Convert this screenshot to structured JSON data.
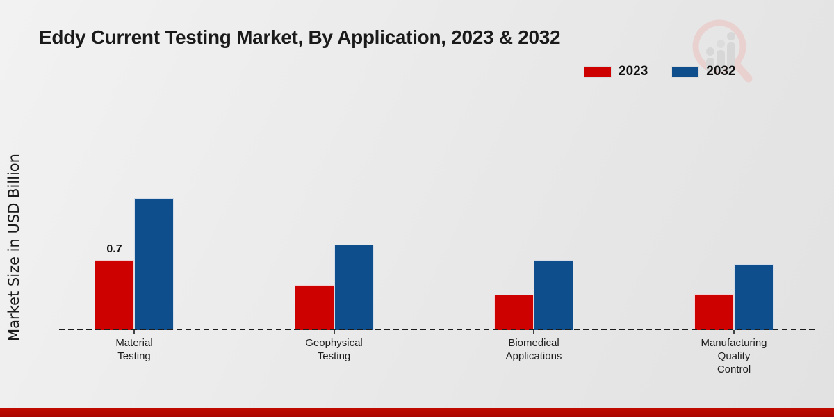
{
  "title": "Eddy Current Testing Market, By Application, 2023 & 2032",
  "y_axis_label": "Market Size in USD Billion",
  "legend": {
    "items": [
      {
        "label": "2023",
        "color": "#cc0100"
      },
      {
        "label": "2032",
        "color": "#0f4e8d"
      }
    ]
  },
  "colors": {
    "series_2023": "#cc0100",
    "series_2032": "#0f4e8d",
    "footer_strip": "#b30800",
    "watermark_pink": "#e9cfcd",
    "watermark_gray": "#d6d6d6"
  },
  "chart_data": {
    "type": "bar",
    "categories": [
      "Material Testing",
      "Geophysical Testing",
      "Biomedical Applications",
      "Manufacturing Quality Control"
    ],
    "series": [
      {
        "name": "2023",
        "color": "#cc0100",
        "values": [
          0.7,
          0.45,
          0.35,
          0.36
        ]
      },
      {
        "name": "2032",
        "color": "#0f4e8d",
        "values": [
          1.32,
          0.85,
          0.7,
          0.66
        ]
      }
    ],
    "title": "Eddy Current Testing Market, By Application, 2023 & 2032",
    "xlabel": "",
    "ylabel": "Market Size in USD Billion",
    "ylim": [
      0,
      1.5
    ],
    "grid": false,
    "baseline_style": "dashed",
    "legend_position": "top-right",
    "bar_value_labels": [
      {
        "series": "2023",
        "category_index": 0,
        "text": "0.7"
      }
    ]
  }
}
